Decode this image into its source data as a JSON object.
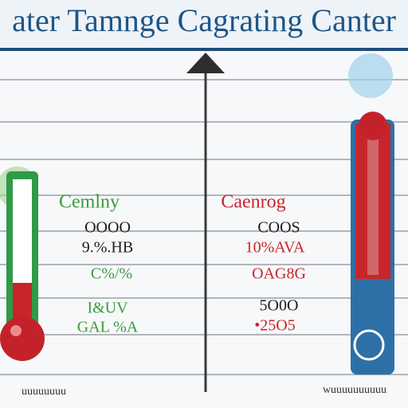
{
  "header": {
    "title": "ater Tamnge Cagrating Canter"
  },
  "left_panel": {
    "heading": "Cemlny",
    "lines": [
      "OOOO",
      "9.%.HB",
      "C%/%",
      "I&UV",
      "GAL %A"
    ]
  },
  "right_panel": {
    "heading": "Caenrog",
    "lines": [
      "COOS",
      "10%AVA",
      "OAG8G",
      "5O0O",
      "•25O5"
    ]
  },
  "footer": {
    "left": "uuuuuuuu",
    "right": "wuuuuuuuuuu"
  }
}
